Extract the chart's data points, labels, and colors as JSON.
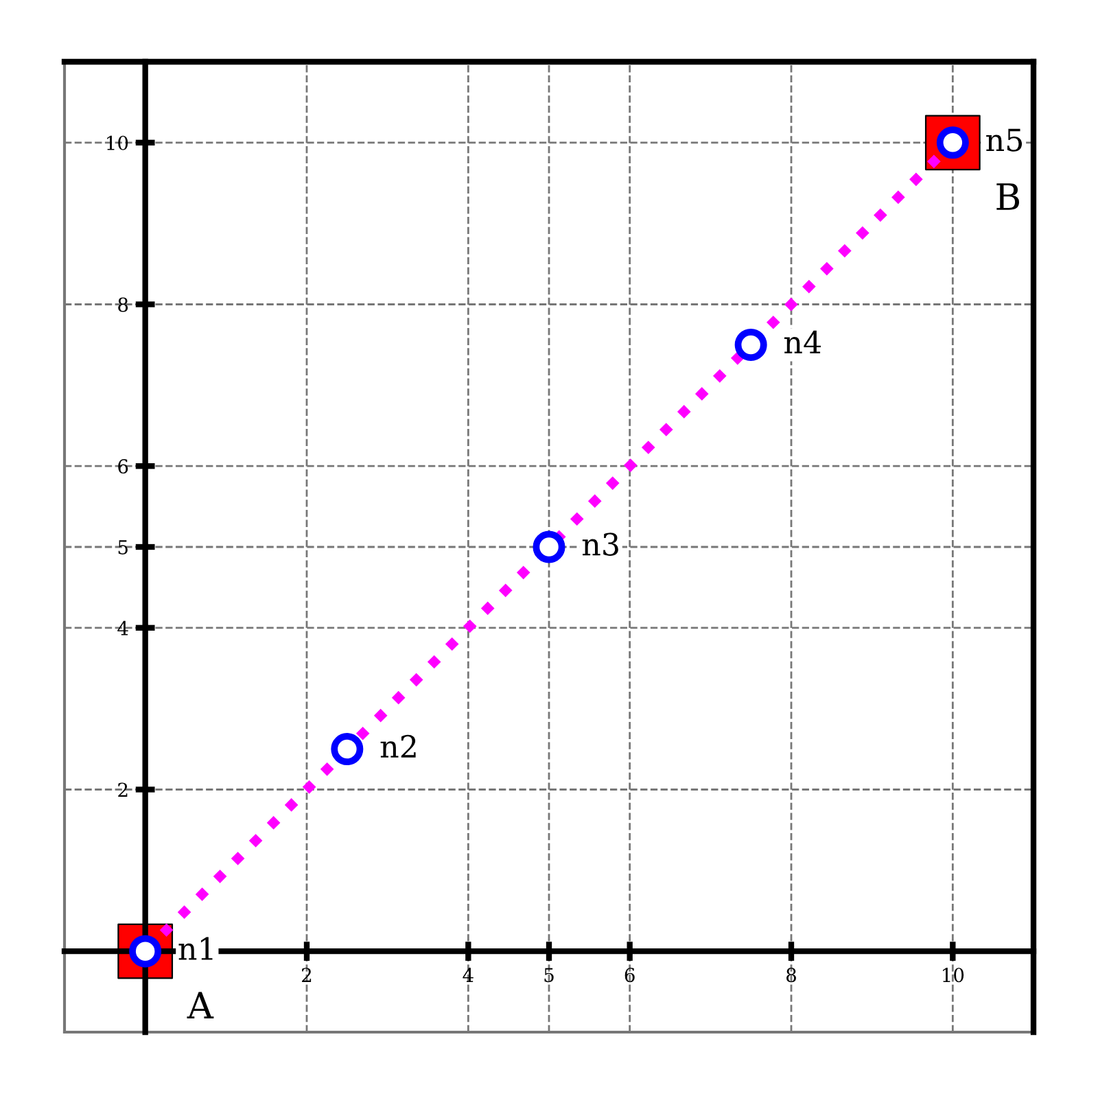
{
  "chart_data": {
    "type": "scatter",
    "xlim": [
      -1,
      11
    ],
    "ylim": [
      -1,
      11
    ],
    "xticks": [
      2,
      4,
      5,
      6,
      8,
      10
    ],
    "yticks": [
      2,
      4,
      5,
      6,
      8,
      10
    ],
    "grid": true,
    "series": [
      {
        "type": "line",
        "x": [
          0,
          10
        ],
        "values": [
          0,
          10
        ],
        "color": "#ff00ff",
        "line_style": "dotted",
        "marker": "none"
      },
      {
        "type": "scatter",
        "x": [
          0,
          10
        ],
        "values": [
          0,
          10
        ],
        "color": "#ff0000",
        "marker": "square"
      },
      {
        "type": "scatter",
        "x": [
          0,
          2.5,
          5,
          7.5,
          10
        ],
        "values": [
          0,
          2.5,
          5,
          7.5,
          10
        ],
        "color": "#0000ff",
        "marker": "circle"
      }
    ],
    "annotations": [
      {
        "text": "n1",
        "x": 0,
        "y": 0
      },
      {
        "text": "n2",
        "x": 2.5,
        "y": 2.5
      },
      {
        "text": "n3",
        "x": 5,
        "y": 5
      },
      {
        "text": "n4",
        "x": 7.5,
        "y": 7.5
      },
      {
        "text": "n5",
        "x": 10,
        "y": 10
      },
      {
        "text": "A",
        "x": 0,
        "y": 0
      },
      {
        "text": "B",
        "x": 10,
        "y": 10
      }
    ]
  }
}
